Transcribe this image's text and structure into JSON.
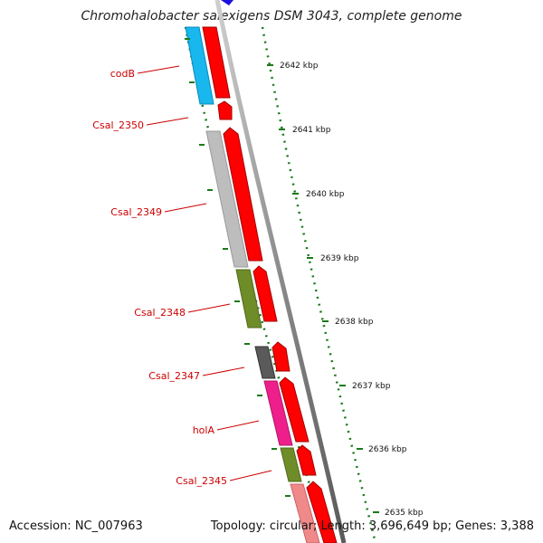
{
  "title": "Chromohalobacter salexigens DSM 3043, complete genome",
  "footer": {
    "accession": "Accession: NC_007963",
    "summary": "Topology: circular; Length: 3,696,649 bp; Genes: 3,388"
  },
  "gene_labels": [
    {
      "id": "codB",
      "text": "codB"
    },
    {
      "id": "csal-2350",
      "text": "Csal_2350"
    },
    {
      "id": "csal-2349",
      "text": "Csal_2349"
    },
    {
      "id": "csal-2348",
      "text": "Csal_2348"
    },
    {
      "id": "csal-2347",
      "text": "Csal_2347"
    },
    {
      "id": "holA",
      "text": "holA"
    },
    {
      "id": "csal-2345",
      "text": "Csal_2345"
    }
  ],
  "ticks": [
    {
      "id": "2642",
      "text": "2642 kbp"
    },
    {
      "id": "2641",
      "text": "2641 kbp"
    },
    {
      "id": "2640",
      "text": "2640 kbp"
    },
    {
      "id": "2639",
      "text": "2639 kbp"
    },
    {
      "id": "2638",
      "text": "2638 kbp"
    },
    {
      "id": "2637",
      "text": "2637 kbp"
    },
    {
      "id": "2636",
      "text": "2636 kbp"
    },
    {
      "id": "2635",
      "text": "2635 kbp"
    }
  ],
  "colors": {
    "label": "#cc0000",
    "cds": "#ff0000",
    "backbone": "#888888",
    "tick": "#1a7a1a",
    "codB": "#18b8ee",
    "Csal_2349": "#bdbdbd",
    "Csal_2348": "#6e8c28",
    "Csal_2347": "#5a5a5a",
    "holA": "#ee1f8a",
    "Csal_2345": "#6e8c28",
    "next": "#f08a8a"
  }
}
